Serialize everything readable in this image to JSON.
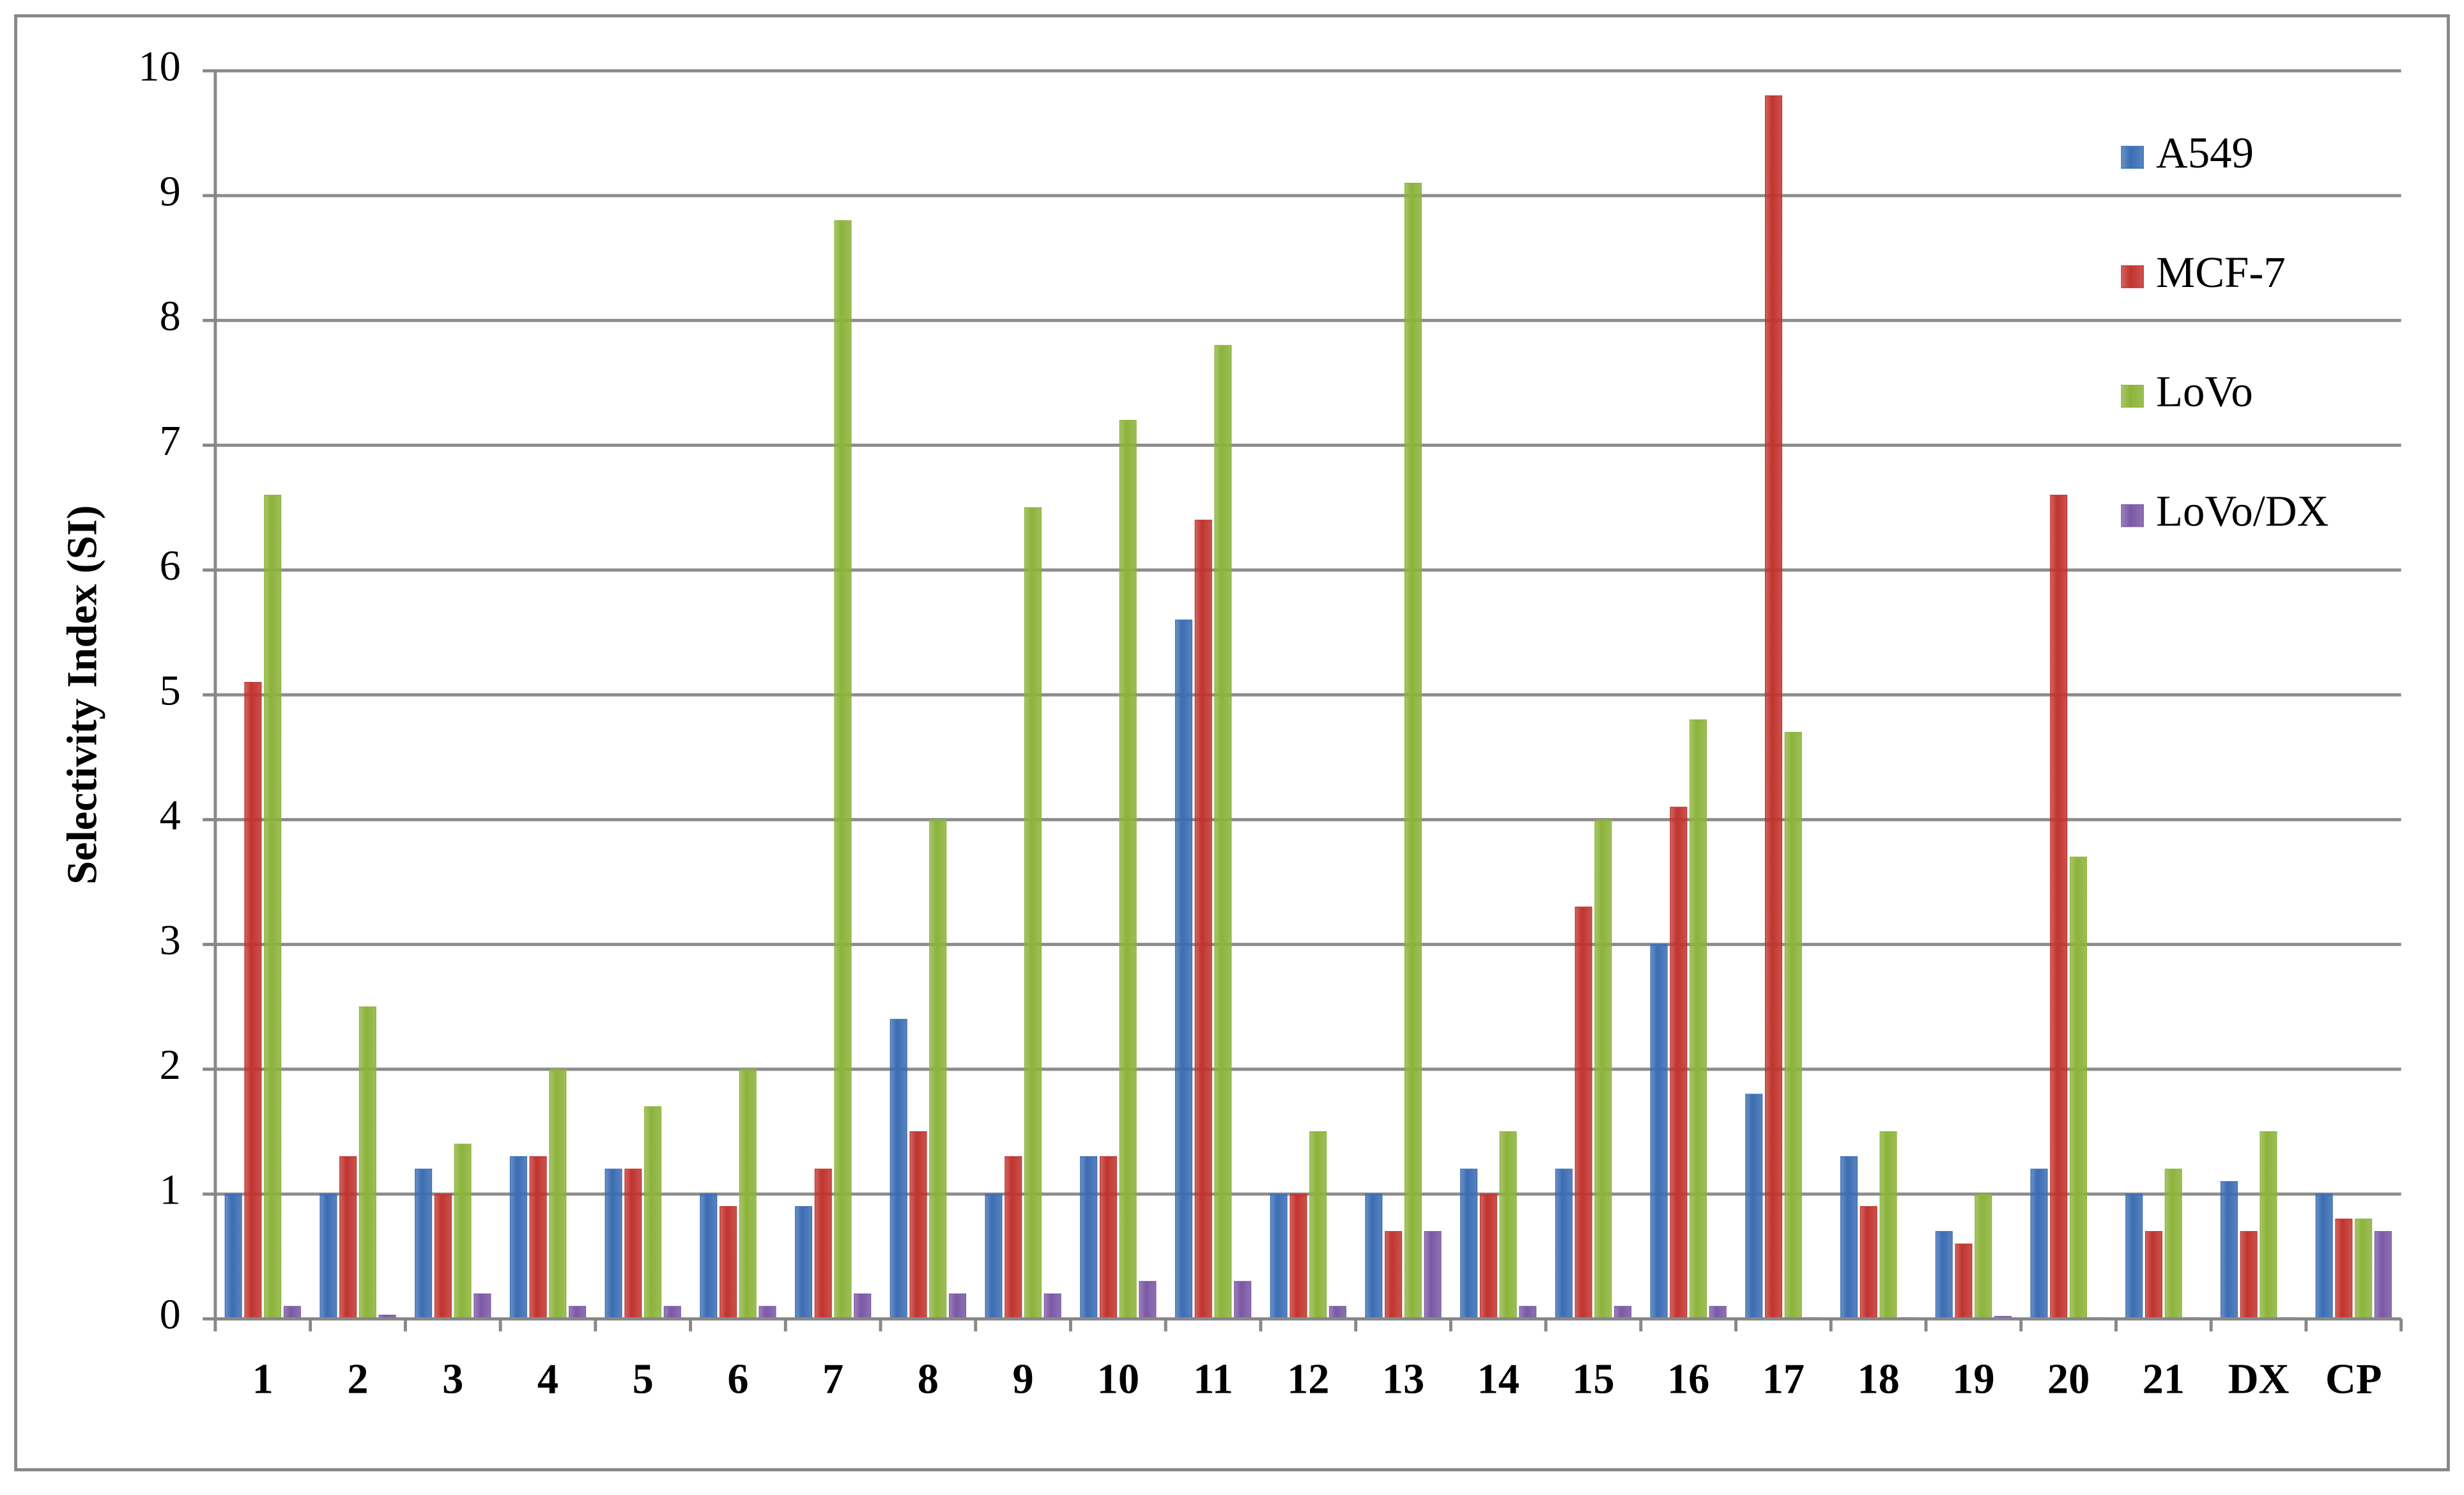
{
  "chart_data": {
    "type": "bar",
    "y_label": "Selectivity Index (SI)",
    "categories": [
      "1",
      "2",
      "3",
      "4",
      "5",
      "6",
      "7",
      "8",
      "9",
      "10",
      "11",
      "12",
      "13",
      "14",
      "15",
      "16",
      "17",
      "18",
      "19",
      "20",
      "21",
      "DX",
      "CP"
    ],
    "series": [
      {
        "name": "A549",
        "color": "#3b6db3",
        "values": [
          1.0,
          1.0,
          1.2,
          1.3,
          1.2,
          1.0,
          0.9,
          2.4,
          1.0,
          1.3,
          5.6,
          1.0,
          1.0,
          1.2,
          1.2,
          3.0,
          1.8,
          1.3,
          0.7,
          1.2,
          1.0,
          1.1,
          1.0
        ]
      },
      {
        "name": "MCF-7",
        "color": "#c1342f",
        "values": [
          5.1,
          1.3,
          1.0,
          1.3,
          1.2,
          0.9,
          1.2,
          1.5,
          1.3,
          1.3,
          6.4,
          1.0,
          0.7,
          1.0,
          3.3,
          4.1,
          9.8,
          0.9,
          0.6,
          6.6,
          0.7,
          0.7,
          0.8
        ]
      },
      {
        "name": "LoVo",
        "color": "#8cb33b",
        "values": [
          6.6,
          2.5,
          1.4,
          2.0,
          1.7,
          2.0,
          8.8,
          4.0,
          6.5,
          7.2,
          7.8,
          1.5,
          9.1,
          1.5,
          4.0,
          4.8,
          4.7,
          1.5,
          1.0,
          3.7,
          1.2,
          1.5,
          0.8
        ]
      },
      {
        "name": "LoVo/DX",
        "color": "#7b58a5",
        "values": [
          0.1,
          0.03,
          0.2,
          0.1,
          0.1,
          0.1,
          0.2,
          0.2,
          0.2,
          0.3,
          0.3,
          0.1,
          0.7,
          0.1,
          0.1,
          0.1,
          0.01,
          0.01,
          0.02,
          0.01,
          0.01,
          0.01,
          0.7
        ]
      }
    ],
    "ylim": [
      0,
      10
    ],
    "yticks": [
      0,
      1,
      2,
      3,
      4,
      5,
      6,
      7,
      8,
      9,
      10
    ],
    "grid": true,
    "legend": "right"
  }
}
